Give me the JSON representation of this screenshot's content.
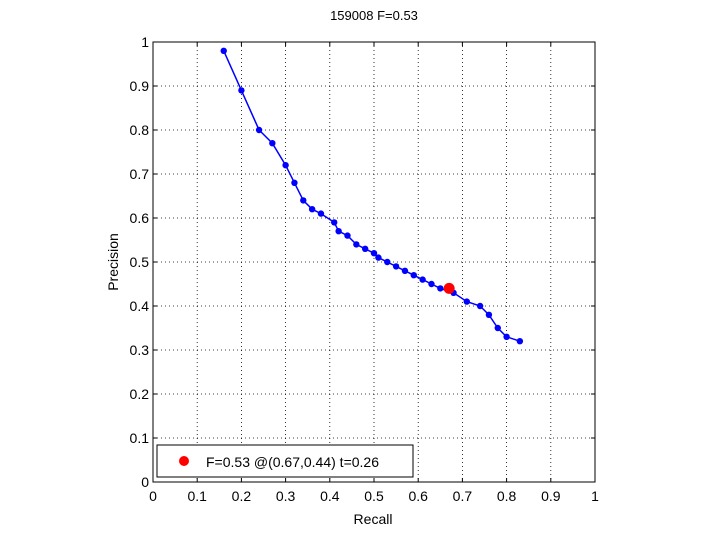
{
  "chart_data": {
    "type": "line",
    "title": "159008 F=0.53",
    "xlabel": "Recall",
    "ylabel": "Precision",
    "xlim": [
      0,
      1
    ],
    "ylim": [
      0,
      1
    ],
    "xticks": [
      "0",
      "0.1",
      "0.2",
      "0.3",
      "0.4",
      "0.5",
      "0.6",
      "0.7",
      "0.8",
      "0.9",
      "1"
    ],
    "yticks": [
      "0",
      "0.1",
      "0.2",
      "0.3",
      "0.4",
      "0.5",
      "0.6",
      "0.7",
      "0.8",
      "0.9",
      "1"
    ],
    "grid": true,
    "legend_position": "bottom-left",
    "series": [
      {
        "color": "#0000ff",
        "x": [
          0.16,
          0.2,
          0.24,
          0.27,
          0.3,
          0.32,
          0.34,
          0.36,
          0.38,
          0.41,
          0.42,
          0.44,
          0.46,
          0.48,
          0.5,
          0.51,
          0.53,
          0.55,
          0.57,
          0.59,
          0.61,
          0.63,
          0.65,
          0.68,
          0.71,
          0.74,
          0.76,
          0.78,
          0.8,
          0.83
        ],
        "y": [
          0.98,
          0.89,
          0.8,
          0.77,
          0.72,
          0.68,
          0.64,
          0.62,
          0.61,
          0.59,
          0.57,
          0.56,
          0.54,
          0.53,
          0.52,
          0.51,
          0.5,
          0.49,
          0.48,
          0.47,
          0.46,
          0.45,
          0.44,
          0.43,
          0.41,
          0.4,
          0.38,
          0.35,
          0.33,
          0.32
        ]
      }
    ],
    "highlight": {
      "x": 0.67,
      "y": 0.44,
      "color": "#ff0000"
    },
    "legend": {
      "label": "F=0.53 @(0.67,0.44) t=0.26"
    }
  }
}
